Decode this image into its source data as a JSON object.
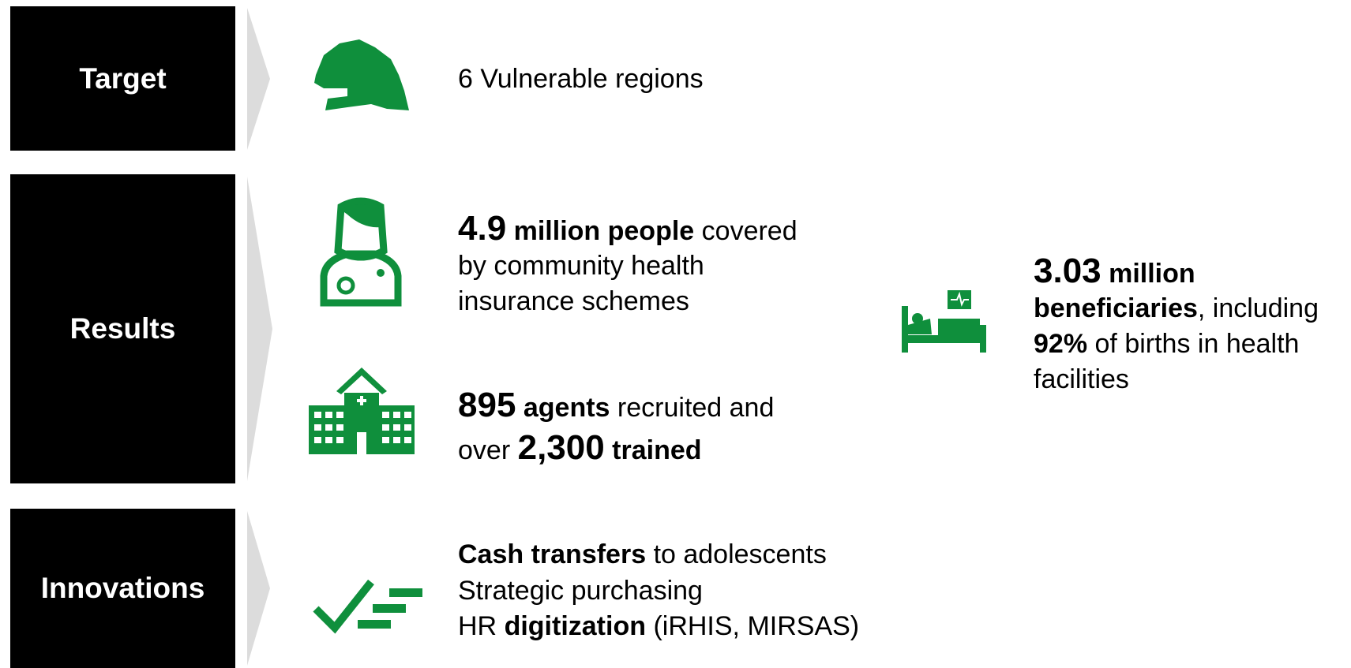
{
  "sections": [
    {
      "label": "Target",
      "text": "6 Vulnerable regions"
    },
    {
      "label": "Results",
      "block1": [
        "4.9",
        "million people",
        "covered",
        "by community health",
        "insurance schemes"
      ],
      "block2": [
        "895",
        "agents",
        "recruited and",
        "over",
        "2,300",
        "trained"
      ],
      "block3": [
        "3.03",
        "million",
        "beneficiaries",
        ", including",
        "92%",
        "of births in health",
        "facilities"
      ]
    },
    {
      "label": "Innovations",
      "lines": [
        [
          "Cash transfers",
          "to adolescents"
        ],
        [
          "Strategic purchasing"
        ],
        [
          "HR",
          "digitization",
          "(iRHIS, MIRSAS)"
        ]
      ]
    }
  ]
}
